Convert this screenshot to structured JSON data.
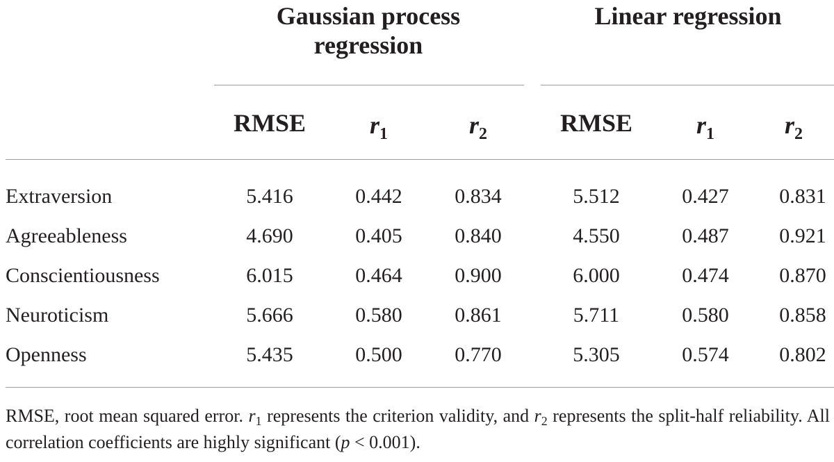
{
  "table": {
    "groups": [
      {
        "line1": "Gaussian process",
        "line2": "regression"
      },
      {
        "line1": "Linear regression",
        "line2": ""
      }
    ],
    "columns": [
      {
        "main": "RMSE",
        "sub": ""
      },
      {
        "main": "r",
        "sub": "1"
      },
      {
        "main": "r",
        "sub": "2"
      },
      {
        "main": "RMSE",
        "sub": ""
      },
      {
        "main": "r",
        "sub": "1"
      },
      {
        "main": "r",
        "sub": "2"
      }
    ],
    "rows": [
      {
        "label": "Extraversion",
        "values": [
          "5.416",
          "0.442",
          "0.834",
          "5.512",
          "0.427",
          "0.831"
        ]
      },
      {
        "label": "Agreeableness",
        "values": [
          "4.690",
          "0.405",
          "0.840",
          "4.550",
          "0.487",
          "0.921"
        ]
      },
      {
        "label": "Conscientiousness",
        "values": [
          "6.015",
          "0.464",
          "0.900",
          "6.000",
          "0.474",
          "0.870"
        ]
      },
      {
        "label": "Neuroticism",
        "values": [
          "5.666",
          "0.580",
          "0.861",
          "5.711",
          "0.580",
          "0.858"
        ]
      },
      {
        "label": "Openness",
        "values": [
          "5.435",
          "0.500",
          "0.770",
          "5.305",
          "0.574",
          "0.802"
        ]
      }
    ]
  },
  "footnote": {
    "p1": "RMSE, root mean squared error. ",
    "r": "r",
    "sub1": "1",
    "p2": " represents the criterion validity, and ",
    "sub2": "2",
    "p3": " represents the split-half reliability. All correlation coefficients are highly significant (",
    "p": "p",
    "p4": " < 0.001)."
  }
}
